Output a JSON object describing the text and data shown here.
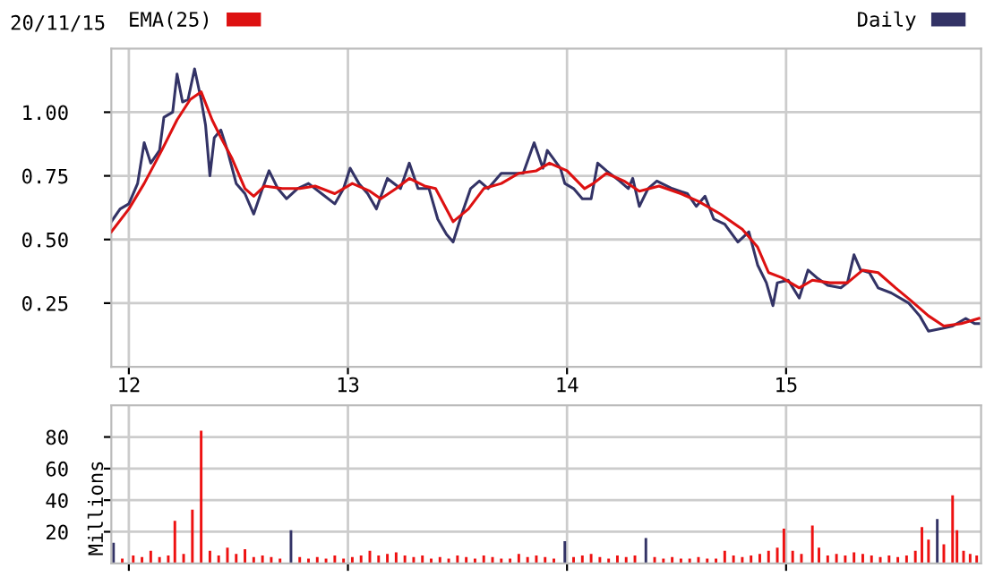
{
  "chart_data": [
    {
      "type": "line",
      "annotations": [
        "20/11/15"
      ],
      "legend": "top",
      "grid": true,
      "marker": "none",
      "line_style": "solid",
      "xlim": [
        11.92,
        15.89
      ],
      "xticks": [
        12,
        13,
        14,
        15
      ],
      "ylim": [
        0,
        1.25
      ],
      "yticks": [
        {
          "value": 0.25,
          "label": "0.25"
        },
        {
          "value": 0.5,
          "label": "0.50"
        },
        {
          "value": 0.75,
          "label": "0.75"
        },
        {
          "value": 1.0,
          "label": "1.00"
        }
      ],
      "series": [
        {
          "name": "EMA(25)",
          "color": "#dd1111",
          "x": [
            11.92,
            12.0,
            12.07,
            12.15,
            12.22,
            12.28,
            12.33,
            12.38,
            12.42,
            12.47,
            12.53,
            12.57,
            12.62,
            12.7,
            12.78,
            12.85,
            12.94,
            13.02,
            13.1,
            13.15,
            13.22,
            13.28,
            13.35,
            13.4,
            13.48,
            13.55,
            13.62,
            13.7,
            13.78,
            13.86,
            13.92,
            14.0,
            14.08,
            14.12,
            14.18,
            14.26,
            14.33,
            14.42,
            14.52,
            14.6,
            14.7,
            14.8,
            14.87,
            14.92,
            14.98,
            15.06,
            15.12,
            15.2,
            15.28,
            15.35,
            15.42,
            15.5,
            15.57,
            15.65,
            15.72,
            15.8,
            15.88
          ],
          "values": [
            0.53,
            0.62,
            0.72,
            0.85,
            0.97,
            1.05,
            1.08,
            0.97,
            0.9,
            0.82,
            0.7,
            0.67,
            0.71,
            0.7,
            0.7,
            0.71,
            0.68,
            0.72,
            0.69,
            0.66,
            0.7,
            0.74,
            0.71,
            0.7,
            0.57,
            0.62,
            0.7,
            0.72,
            0.76,
            0.77,
            0.8,
            0.77,
            0.7,
            0.72,
            0.76,
            0.73,
            0.69,
            0.71,
            0.68,
            0.65,
            0.6,
            0.54,
            0.47,
            0.37,
            0.35,
            0.31,
            0.34,
            0.33,
            0.33,
            0.38,
            0.37,
            0.31,
            0.26,
            0.2,
            0.16,
            0.17,
            0.19
          ]
        },
        {
          "name": "Daily",
          "color": "#333366",
          "x": [
            11.92,
            11.96,
            12.0,
            12.04,
            12.07,
            12.1,
            12.14,
            12.16,
            12.2,
            12.22,
            12.245,
            12.27,
            12.3,
            12.33,
            12.35,
            12.37,
            12.39,
            12.42,
            12.45,
            12.49,
            12.53,
            12.57,
            12.61,
            12.64,
            12.68,
            12.72,
            12.77,
            12.82,
            12.88,
            12.94,
            12.98,
            13.01,
            13.05,
            13.09,
            13.13,
            13.18,
            13.24,
            13.28,
            13.32,
            13.37,
            13.41,
            13.45,
            13.48,
            13.52,
            13.56,
            13.6,
            13.64,
            13.7,
            13.75,
            13.8,
            13.85,
            13.89,
            13.91,
            13.97,
            13.99,
            14.03,
            14.07,
            14.11,
            14.14,
            14.18,
            14.24,
            14.28,
            14.3,
            14.33,
            14.37,
            14.41,
            14.48,
            14.55,
            14.59,
            14.63,
            14.67,
            14.72,
            14.78,
            14.83,
            14.87,
            14.91,
            14.94,
            14.96,
            15.01,
            15.06,
            15.1,
            15.14,
            15.19,
            15.25,
            15.28,
            15.31,
            15.34,
            15.38,
            15.42,
            15.48,
            15.56,
            15.61,
            15.65,
            15.71,
            15.76,
            15.82,
            15.86,
            15.88
          ],
          "values": [
            0.57,
            0.62,
            0.64,
            0.72,
            0.88,
            0.8,
            0.85,
            0.98,
            1.0,
            1.15,
            1.04,
            1.05,
            1.17,
            1.05,
            0.95,
            0.75,
            0.9,
            0.93,
            0.85,
            0.72,
            0.68,
            0.6,
            0.7,
            0.77,
            0.7,
            0.66,
            0.7,
            0.72,
            0.68,
            0.64,
            0.7,
            0.78,
            0.72,
            0.68,
            0.62,
            0.74,
            0.7,
            0.8,
            0.7,
            0.7,
            0.58,
            0.52,
            0.49,
            0.6,
            0.7,
            0.73,
            0.7,
            0.76,
            0.76,
            0.76,
            0.88,
            0.78,
            0.85,
            0.78,
            0.72,
            0.7,
            0.66,
            0.66,
            0.8,
            0.77,
            0.73,
            0.7,
            0.74,
            0.63,
            0.7,
            0.73,
            0.7,
            0.68,
            0.63,
            0.67,
            0.58,
            0.56,
            0.49,
            0.53,
            0.4,
            0.33,
            0.24,
            0.33,
            0.34,
            0.27,
            0.38,
            0.35,
            0.32,
            0.31,
            0.33,
            0.44,
            0.38,
            0.37,
            0.31,
            0.29,
            0.25,
            0.2,
            0.14,
            0.15,
            0.16,
            0.19,
            0.17,
            0.17
          ]
        }
      ]
    },
    {
      "type": "bar",
      "ylabel": "Millions",
      "grid": true,
      "tick_labels": "y",
      "xlim": [
        11.92,
        15.89
      ],
      "xticks": [
        12,
        13,
        14,
        15
      ],
      "ylim": [
        0,
        100
      ],
      "yticks": [
        20,
        40,
        60,
        80
      ],
      "x": [
        11.93,
        11.97,
        12.02,
        12.06,
        12.1,
        12.14,
        12.18,
        12.21,
        12.25,
        12.29,
        12.33,
        12.37,
        12.41,
        12.45,
        12.49,
        12.53,
        12.57,
        12.61,
        12.65,
        12.69,
        12.74,
        12.78,
        12.82,
        12.86,
        12.9,
        12.94,
        12.98,
        13.02,
        13.06,
        13.1,
        13.14,
        13.18,
        13.22,
        13.26,
        13.3,
        13.34,
        13.38,
        13.42,
        13.46,
        13.5,
        13.54,
        13.58,
        13.62,
        13.66,
        13.7,
        13.74,
        13.78,
        13.82,
        13.86,
        13.9,
        13.94,
        13.99,
        14.03,
        14.07,
        14.11,
        14.15,
        14.19,
        14.23,
        14.27,
        14.31,
        14.36,
        14.4,
        14.44,
        14.48,
        14.52,
        14.56,
        14.6,
        14.64,
        14.68,
        14.72,
        14.76,
        14.8,
        14.84,
        14.88,
        14.92,
        14.96,
        14.99,
        15.03,
        15.07,
        15.12,
        15.15,
        15.19,
        15.23,
        15.27,
        15.31,
        15.35,
        15.39,
        15.43,
        15.47,
        15.51,
        15.55,
        15.59,
        15.62,
        15.65,
        15.69,
        15.72,
        15.76,
        15.78,
        15.81,
        15.84,
        15.87
      ],
      "values": [
        13,
        3,
        5,
        4,
        8,
        4,
        5,
        27,
        6,
        34,
        84,
        8,
        5,
        10,
        6,
        9,
        4,
        5,
        4,
        3,
        21,
        4,
        3,
        4,
        3,
        5,
        3,
        4,
        5,
        8,
        5,
        6,
        7,
        5,
        4,
        5,
        3,
        4,
        3,
        5,
        4,
        3,
        5,
        4,
        3,
        3,
        6,
        4,
        5,
        4,
        3,
        14,
        4,
        5,
        6,
        4,
        3,
        5,
        4,
        5,
        16,
        4,
        3,
        4,
        3,
        3,
        4,
        3,
        3,
        8,
        5,
        4,
        5,
        6,
        8,
        10,
        22,
        8,
        6,
        24,
        10,
        5,
        6,
        5,
        7,
        6,
        5,
        4,
        5,
        4,
        5,
        8,
        23,
        15,
        28,
        12,
        43,
        21,
        8,
        6,
        5
      ],
      "colors": [
        "#333366",
        "#ee1111",
        "#ee1111",
        "#ee1111",
        "#ee1111",
        "#ee1111",
        "#ee1111",
        "#ee1111",
        "#ee1111",
        "#ee1111",
        "#ee1111",
        "#ee1111",
        "#ee1111",
        "#ee1111",
        "#ee1111",
        "#ee1111",
        "#ee1111",
        "#ee1111",
        "#ee1111",
        "#ee1111",
        "#333366",
        "#ee1111",
        "#ee1111",
        "#ee1111",
        "#ee1111",
        "#ee1111",
        "#ee1111",
        "#ee1111",
        "#ee1111",
        "#ee1111",
        "#ee1111",
        "#ee1111",
        "#ee1111",
        "#ee1111",
        "#ee1111",
        "#ee1111",
        "#ee1111",
        "#ee1111",
        "#ee1111",
        "#ee1111",
        "#ee1111",
        "#ee1111",
        "#ee1111",
        "#ee1111",
        "#ee1111",
        "#ee1111",
        "#ee1111",
        "#ee1111",
        "#ee1111",
        "#ee1111",
        "#ee1111",
        "#333366",
        "#ee1111",
        "#ee1111",
        "#ee1111",
        "#ee1111",
        "#ee1111",
        "#ee1111",
        "#ee1111",
        "#ee1111",
        "#333366",
        "#ee1111",
        "#ee1111",
        "#ee1111",
        "#ee1111",
        "#ee1111",
        "#ee1111",
        "#ee1111",
        "#ee1111",
        "#ee1111",
        "#ee1111",
        "#ee1111",
        "#ee1111",
        "#ee1111",
        "#ee1111",
        "#ee1111",
        "#ee1111",
        "#ee1111",
        "#ee1111",
        "#ee1111",
        "#ee1111",
        "#ee1111",
        "#ee1111",
        "#ee1111",
        "#ee1111",
        "#ee1111",
        "#ee1111",
        "#ee1111",
        "#ee1111",
        "#ee1111",
        "#ee1111",
        "#ee1111",
        "#ee1111",
        "#ee1111",
        "#333366",
        "#ee1111",
        "#ee1111",
        "#ee1111",
        "#ee1111",
        "#ee1111",
        "#ee1111"
      ]
    }
  ]
}
